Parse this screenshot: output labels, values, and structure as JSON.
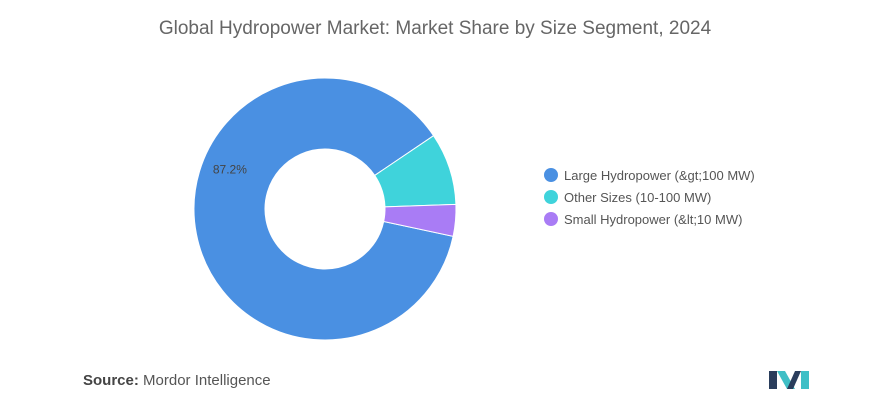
{
  "chart_data": {
    "type": "pie",
    "donut": true,
    "title": "Global Hydropower Market: Market Share by Size Segment, 2024",
    "slices": [
      {
        "name": "Large Hydropower (&gt;100 MW)",
        "value": 87.2,
        "color": "#4a90e2",
        "label": "87.2%"
      },
      {
        "name": "Other Sizes (10-100 MW)",
        "value": 8.9,
        "color": "#3fd3db",
        "label": ""
      },
      {
        "name": "Small Hydropower (&lt;10 MW)",
        "value": 3.9,
        "color": "#a97cf5",
        "label": ""
      }
    ],
    "legend_position": "right"
  },
  "source": {
    "label": "Source:",
    "value": "Mordor Intelligence"
  },
  "logo": {
    "icon": "mordor-intelligence-logo-icon",
    "colors": [
      "#2a3d5c",
      "#3fbfc6"
    ]
  }
}
